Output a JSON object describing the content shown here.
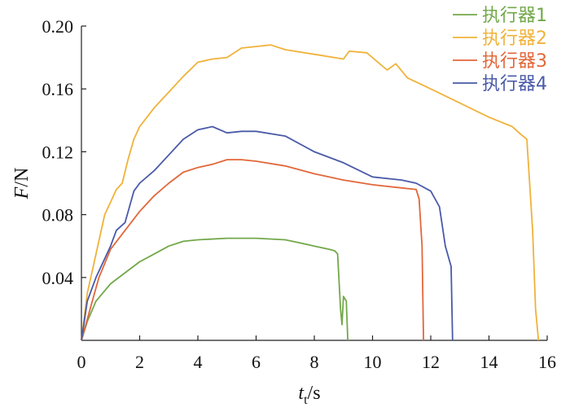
{
  "chart_data": {
    "type": "line",
    "xlabel": {
      "main": "t",
      "sub": "t",
      "unit": "/s"
    },
    "ylabel": {
      "main": "F",
      "unit": "/N"
    },
    "xlim": [
      0,
      16
    ],
    "ylim": [
      0,
      0.2
    ],
    "xticks": [
      0,
      2,
      4,
      6,
      8,
      10,
      12,
      14,
      16
    ],
    "yticks": [
      0.04,
      0.08,
      0.12,
      0.16,
      0.2
    ],
    "xtick_labels": [
      "0",
      "2",
      "4",
      "6",
      "8",
      "10",
      "12",
      "14",
      "16"
    ],
    "ytick_labels": [
      "0.04",
      "0.08",
      "0.12",
      "0.16",
      "0.20"
    ],
    "grid": false,
    "legend_position": "top-right",
    "series": [
      {
        "name": "执行器1",
        "color": "#72a84a",
        "points": [
          [
            0,
            0
          ],
          [
            0.2,
            0.012
          ],
          [
            0.5,
            0.025
          ],
          [
            1,
            0.036
          ],
          [
            1.5,
            0.043
          ],
          [
            2,
            0.05
          ],
          [
            2.5,
            0.055
          ],
          [
            3,
            0.06
          ],
          [
            3.5,
            0.063
          ],
          [
            4,
            0.064
          ],
          [
            5,
            0.065
          ],
          [
            6,
            0.065
          ],
          [
            7,
            0.064
          ],
          [
            7.5,
            0.062
          ],
          [
            8,
            0.06
          ],
          [
            8.5,
            0.058
          ],
          [
            8.7,
            0.057
          ],
          [
            8.8,
            0.055
          ],
          [
            8.9,
            0.02
          ],
          [
            8.95,
            0.01
          ],
          [
            9.0,
            0.028
          ],
          [
            9.1,
            0.025
          ],
          [
            9.15,
            0.0
          ]
        ]
      },
      {
        "name": "执行器2",
        "color": "#f0b23a",
        "points": [
          [
            0,
            0
          ],
          [
            0.2,
            0.03
          ],
          [
            0.5,
            0.055
          ],
          [
            0.8,
            0.08
          ],
          [
            1.0,
            0.088
          ],
          [
            1.2,
            0.096
          ],
          [
            1.4,
            0.1
          ],
          [
            1.6,
            0.115
          ],
          [
            1.8,
            0.128
          ],
          [
            2,
            0.136
          ],
          [
            2.5,
            0.148
          ],
          [
            3,
            0.158
          ],
          [
            3.5,
            0.168
          ],
          [
            4,
            0.177
          ],
          [
            4.5,
            0.179
          ],
          [
            5,
            0.18
          ],
          [
            5.5,
            0.186
          ],
          [
            6,
            0.187
          ],
          [
            6.5,
            0.188
          ],
          [
            7,
            0.185
          ],
          [
            8,
            0.182
          ],
          [
            9,
            0.179
          ],
          [
            9.2,
            0.184
          ],
          [
            9.8,
            0.183
          ],
          [
            10.5,
            0.172
          ],
          [
            10.8,
            0.176
          ],
          [
            11.2,
            0.167
          ],
          [
            12,
            0.16
          ],
          [
            13,
            0.151
          ],
          [
            14,
            0.142
          ],
          [
            14.8,
            0.136
          ],
          [
            15.1,
            0.131
          ],
          [
            15.3,
            0.128
          ],
          [
            15.5,
            0.07
          ],
          [
            15.6,
            0.02
          ],
          [
            15.7,
            0.0
          ]
        ]
      },
      {
        "name": "执行器3",
        "color": "#e2673a",
        "points": [
          [
            0,
            0
          ],
          [
            0.3,
            0.02
          ],
          [
            0.6,
            0.04
          ],
          [
            1,
            0.058
          ],
          [
            1.5,
            0.07
          ],
          [
            2,
            0.082
          ],
          [
            2.5,
            0.092
          ],
          [
            3,
            0.1
          ],
          [
            3.5,
            0.107
          ],
          [
            4,
            0.11
          ],
          [
            4.5,
            0.112
          ],
          [
            5,
            0.115
          ],
          [
            5.5,
            0.115
          ],
          [
            6,
            0.114
          ],
          [
            7,
            0.111
          ],
          [
            8,
            0.106
          ],
          [
            9,
            0.102
          ],
          [
            10,
            0.099
          ],
          [
            11,
            0.097
          ],
          [
            11.5,
            0.096
          ],
          [
            11.6,
            0.09
          ],
          [
            11.7,
            0.06
          ],
          [
            11.75,
            0.0
          ]
        ]
      },
      {
        "name": "执行器4",
        "color": "#4a5aa8",
        "points": [
          [
            0,
            0
          ],
          [
            0.2,
            0.025
          ],
          [
            0.5,
            0.04
          ],
          [
            1,
            0.06
          ],
          [
            1.2,
            0.07
          ],
          [
            1.5,
            0.075
          ],
          [
            1.8,
            0.095
          ],
          [
            2,
            0.1
          ],
          [
            2.5,
            0.108
          ],
          [
            3,
            0.118
          ],
          [
            3.5,
            0.128
          ],
          [
            4,
            0.134
          ],
          [
            4.5,
            0.136
          ],
          [
            5,
            0.132
          ],
          [
            5.5,
            0.133
          ],
          [
            6,
            0.133
          ],
          [
            7,
            0.13
          ],
          [
            8,
            0.12
          ],
          [
            9,
            0.113
          ],
          [
            10,
            0.104
          ],
          [
            11,
            0.102
          ],
          [
            11.5,
            0.1
          ],
          [
            12,
            0.095
          ],
          [
            12.3,
            0.085
          ],
          [
            12.5,
            0.06
          ],
          [
            12.7,
            0.047
          ],
          [
            12.75,
            0.0
          ]
        ]
      }
    ]
  }
}
